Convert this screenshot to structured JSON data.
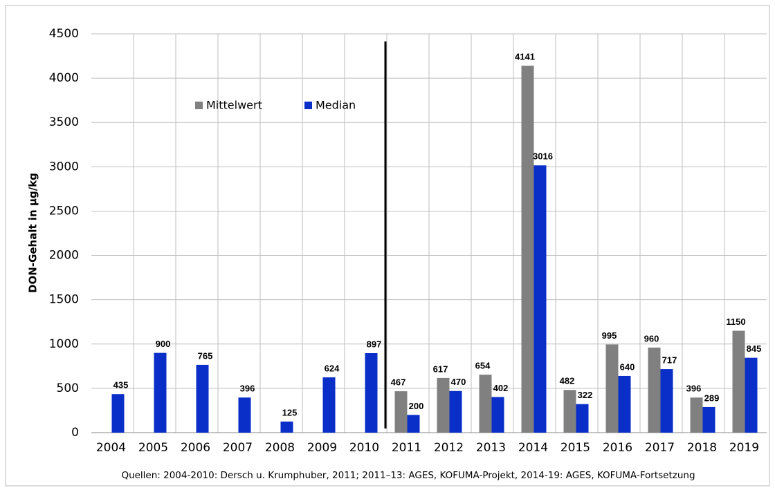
{
  "chart_data": {
    "type": "bar",
    "y_label": "DON-Gehalt in µg/kg",
    "source": "Quellen: 2004-2010: Dersch u. Krumphuber, 2011; 2011–13: AGES, KOFUMA-Projekt,  2014-19: AGES, KOFUMA-Fortsetzung",
    "categories": [
      "2004",
      "2005",
      "2006",
      "2007",
      "2008",
      "2009",
      "2010",
      "2011",
      "2012",
      "2013",
      "2014",
      "2015",
      "2016",
      "2017",
      "2018",
      "2019"
    ],
    "series": [
      {
        "name": "Mittelwert",
        "color": "#808080",
        "values": [
          null,
          null,
          null,
          null,
          null,
          null,
          null,
          467,
          617,
          654,
          4141,
          482,
          995,
          960,
          396,
          1150
        ]
      },
      {
        "name": "Median",
        "color": "#0a2fc8",
        "values": [
          435,
          900,
          765,
          396,
          125,
          624,
          897,
          200,
          470,
          402,
          3016,
          322,
          640,
          717,
          289,
          845
        ]
      }
    ],
    "ylim": [
      0,
      4500
    ],
    "yticks": [
      0,
      500,
      1000,
      1500,
      2000,
      2500,
      3000,
      3500,
      4000,
      4500
    ],
    "grid": true
  }
}
